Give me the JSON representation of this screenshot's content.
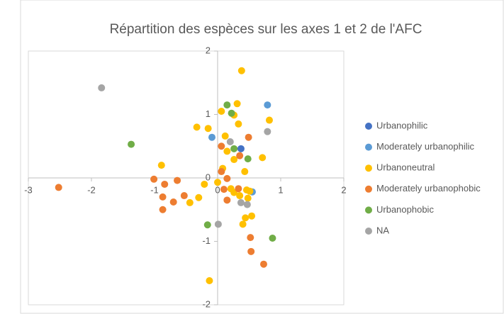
{
  "chart_data": {
    "type": "scatter",
    "title": "Répartition des espèces sur les axes 1 et 2 de l'AFC",
    "xlim": [
      -3,
      2
    ],
    "ylim": [
      -2,
      2
    ],
    "xticks": [
      -3,
      -2,
      -1,
      0,
      1,
      2
    ],
    "yticks": [
      -2,
      -1,
      0,
      1,
      2
    ],
    "legend": "right",
    "series": [
      {
        "name": "Urbanophilic",
        "color": "#4472c4",
        "x": [
          0.37
        ],
        "y": [
          0.46
        ]
      },
      {
        "name": "Moderately urbanophilic",
        "color": "#5b9bd5",
        "x": [
          0.79,
          -0.09,
          0.55
        ],
        "y": [
          1.15,
          0.64,
          -0.22
        ]
      },
      {
        "name": "Urbanoneutral",
        "color": "#ffc000",
        "x": [
          0.38,
          0.31,
          0.06,
          0.26,
          0.33,
          0.82,
          -0.33,
          -0.15,
          0.12,
          0.71,
          0.15,
          0.26,
          -0.89,
          0.08,
          0.43,
          0,
          -0.21,
          0.21,
          0.46,
          0.51,
          0.35,
          0.48,
          -0.44,
          -0.3,
          0.54,
          0.44,
          0.4,
          -0.13,
          0.26
        ],
        "y": [
          1.69,
          1.17,
          1.05,
          0.99,
          0.85,
          0.91,
          0.8,
          0.78,
          0.66,
          0.32,
          0.42,
          0.29,
          0.2,
          0.15,
          0.1,
          -0.07,
          -0.1,
          -0.17,
          -0.19,
          -0.21,
          -0.28,
          -0.32,
          -0.39,
          -0.31,
          -0.6,
          -0.63,
          -0.73,
          -1.62,
          -0.23
        ]
      },
      {
        "name": "Moderately urbanophobic",
        "color": "#ed7d31",
        "x": [
          -2.52,
          -1.01,
          -0.84,
          -0.64,
          -0.53,
          -0.7,
          -0.87,
          -0.87,
          0.06,
          0.35,
          0.49,
          0.06,
          0.15,
          0.1,
          0.33,
          0.15,
          0.52,
          0.53,
          0.73
        ],
        "y": [
          -0.15,
          -0.02,
          -0.1,
          -0.04,
          -0.28,
          -0.38,
          -0.3,
          -0.5,
          0.5,
          0.35,
          0.64,
          0.1,
          -0.01,
          -0.18,
          -0.17,
          -0.35,
          -0.94,
          -1.16,
          -1.36
        ]
      },
      {
        "name": "Urbanophobic",
        "color": "#70ad47",
        "x": [
          -1.37,
          0.15,
          0.22,
          0.26,
          0.48,
          -0.16,
          0.87
        ],
        "y": [
          0.53,
          1.15,
          1.02,
          0.46,
          0.3,
          -0.74,
          -0.95
        ]
      },
      {
        "name": "NA",
        "color": "#a5a5a5",
        "x": [
          -1.84,
          0.2,
          0.79,
          0.37,
          0.47,
          0.01
        ],
        "y": [
          1.42,
          0.57,
          0.73,
          -0.39,
          -0.42,
          -0.73
        ]
      }
    ]
  }
}
